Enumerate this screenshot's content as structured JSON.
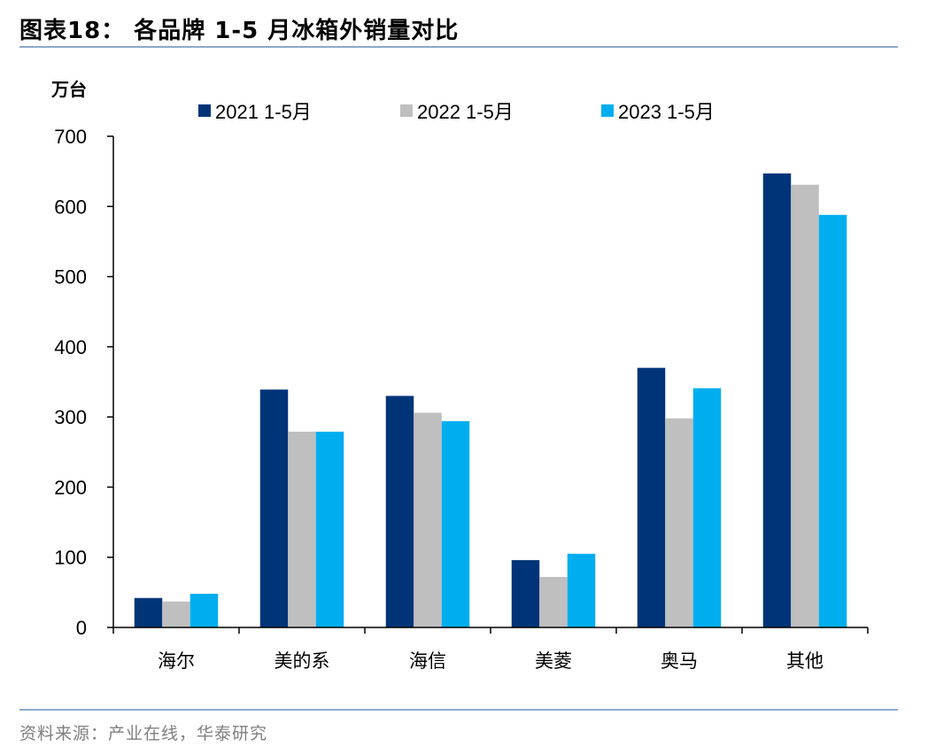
{
  "header": {
    "title": "图表18：  各品牌 1-5 月冰箱外销量对比"
  },
  "footer": {
    "source": "资料来源：产业在线，华泰研究"
  },
  "chart_data": {
    "type": "bar",
    "title": "",
    "ylabel": "万台",
    "xlabel": "",
    "ylim": [
      0,
      700
    ],
    "yticks": [
      "0",
      "100",
      "200",
      "300",
      "400",
      "500",
      "600",
      "700"
    ],
    "grid": false,
    "legend_position": "top",
    "categories": [
      "海尔",
      "美的系",
      "海信",
      "美菱",
      "奥马",
      "其他"
    ],
    "series": [
      {
        "name": "2021 1-5月",
        "color": "#003478",
        "values": [
          42,
          339,
          330,
          96,
          370,
          647
        ]
      },
      {
        "name": "2022 1-5月",
        "color": "#bfbfbf",
        "values": [
          37,
          279,
          306,
          72,
          298,
          631
        ]
      },
      {
        "name": "2023 1-5月",
        "color": "#00aeef",
        "values": [
          48,
          279,
          294,
          105,
          341,
          588
        ]
      }
    ]
  }
}
